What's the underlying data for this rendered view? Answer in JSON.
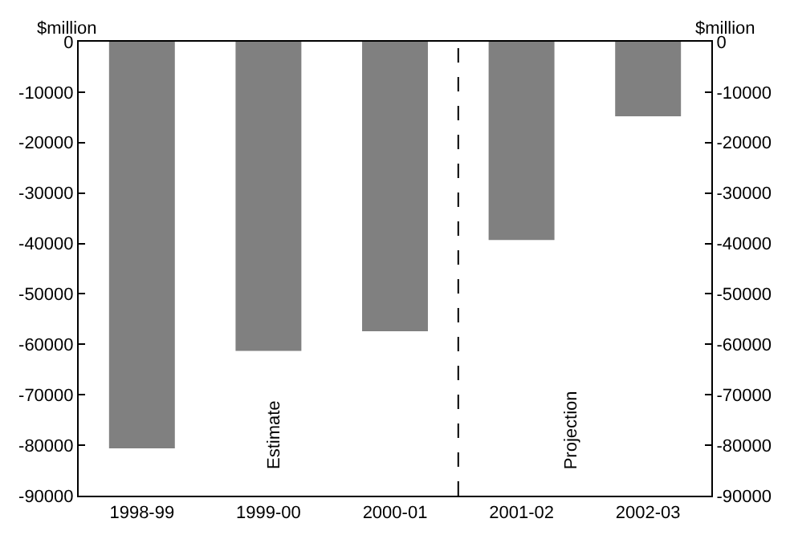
{
  "chart_data": {
    "type": "bar",
    "ylabel": "$million",
    "y2label": "$million",
    "categories": [
      "1998-99",
      "1999-00",
      "2000-01",
      "2001-02",
      "2002-03"
    ],
    "series": [
      {
        "color": "#808080",
        "values": [
          -80600,
          -61300,
          -57400,
          -39300,
          -14800
        ]
      }
    ],
    "ylim": [
      -90000,
      0
    ],
    "yticks": [
      -90000,
      -80000,
      -70000,
      -60000,
      -50000,
      -40000,
      -30000,
      -20000,
      -10000,
      0
    ],
    "y2lim": [
      -90000,
      0
    ],
    "y2ticks": [
      -90000,
      -80000,
      -70000,
      -60000,
      -50000,
      -40000,
      -30000,
      -20000,
      -10000,
      0
    ],
    "annotations": [
      "Estimate",
      "Projection"
    ]
  }
}
